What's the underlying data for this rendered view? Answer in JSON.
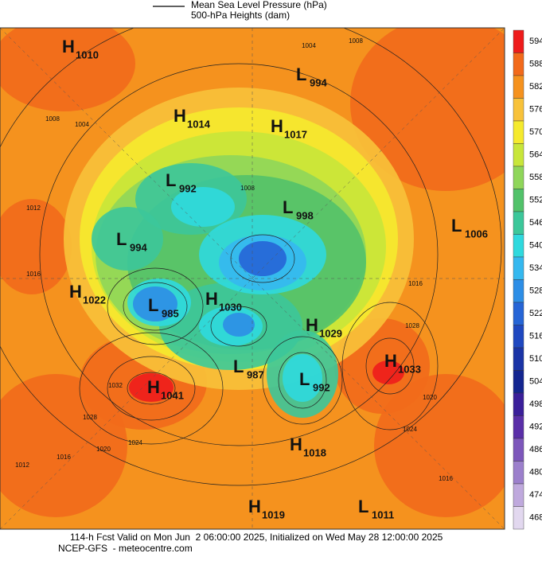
{
  "legend": {
    "line_label": "Mean Sea Level Pressure (hPa)",
    "fill_label": "500-hPa Heights (dam)"
  },
  "colorbar": [
    {
      "label": 594,
      "color": "#ee1c1c"
    },
    {
      "label": 588,
      "color": "#f26a1b"
    },
    {
      "label": 582,
      "color": "#f5921e"
    },
    {
      "label": 576,
      "color": "#f8c23a"
    },
    {
      "label": 570,
      "color": "#f5ea2e"
    },
    {
      "label": 564,
      "color": "#c8e63a"
    },
    {
      "label": 558,
      "color": "#8fd65a"
    },
    {
      "label": 552,
      "color": "#52c26a"
    },
    {
      "label": 546,
      "color": "#3cc79a"
    },
    {
      "label": 540,
      "color": "#2fd9de"
    },
    {
      "label": 534,
      "color": "#35b8ef"
    },
    {
      "label": 528,
      "color": "#2d8ee6"
    },
    {
      "label": 522,
      "color": "#2665d6"
    },
    {
      "label": 516,
      "color": "#1f48c0"
    },
    {
      "label": 510,
      "color": "#1a34a6"
    },
    {
      "label": 504,
      "color": "#142690"
    },
    {
      "label": 498,
      "color": "#3a1f9a"
    },
    {
      "label": 492,
      "color": "#5a2fa8"
    },
    {
      "label": 486,
      "color": "#7d57bb"
    },
    {
      "label": 480,
      "color": "#9c80cc"
    },
    {
      "label": 474,
      "color": "#bfa9dd"
    },
    {
      "label": 468,
      "color": "#e2d8ef"
    }
  ],
  "pressure_centers": [
    {
      "letter": "H",
      "value": 1010
    },
    {
      "letter": "H",
      "value": 1014
    },
    {
      "letter": "H",
      "value": 1017
    },
    {
      "letter": "L",
      "value": 994
    },
    {
      "letter": "L",
      "value": 992
    },
    {
      "letter": "L",
      "value": 998
    },
    {
      "letter": "L",
      "value": 1006
    },
    {
      "letter": "L",
      "value": 994
    },
    {
      "letter": "H",
      "value": 1022
    },
    {
      "letter": "L",
      "value": 985
    },
    {
      "letter": "H",
      "value": 1030
    },
    {
      "letter": "H",
      "value": 1029
    },
    {
      "letter": "H",
      "value": 1033
    },
    {
      "letter": "L",
      "value": 987
    },
    {
      "letter": "L",
      "value": 992
    },
    {
      "letter": "H",
      "value": 1041
    },
    {
      "letter": "H",
      "value": 1018
    },
    {
      "letter": "H",
      "value": 1019
    },
    {
      "letter": "L",
      "value": 1011
    }
  ],
  "contour_labels": [
    1008,
    1004,
    1008,
    1004,
    1012,
    1016,
    1008,
    1016,
    1028,
    1032,
    1028,
    1024,
    1020,
    1016,
    1012,
    1024,
    1020,
    1016
  ],
  "footer": {
    "line1": "114-h Fcst Valid on Mon Jun  2 06:00:00 2025, Initialized on Wed May 28 12:00:00 2025",
    "line2": "NCEP-GFS  - meteocentre.com"
  }
}
